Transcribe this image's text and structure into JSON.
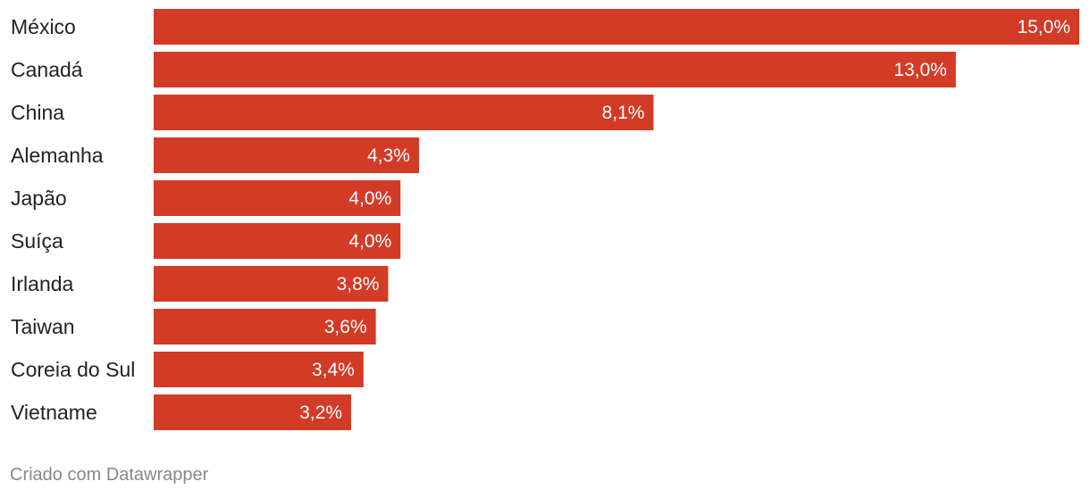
{
  "chart_data": {
    "type": "bar",
    "orientation": "horizontal",
    "categories": [
      "México",
      "Canadá",
      "China",
      "Alemanha",
      "Japão",
      "Suíça",
      "Irlanda",
      "Taiwan",
      "Coreia do Sul",
      "Vietname"
    ],
    "values": [
      15.0,
      13.0,
      8.1,
      4.3,
      4.0,
      4.0,
      3.8,
      3.6,
      3.4,
      3.2
    ],
    "value_labels": [
      "15,0%",
      "13,0%",
      "8,1%",
      "4,3%",
      "4,0%",
      "4,0%",
      "3,8%",
      "3,6%",
      "3,4%",
      "3,2%"
    ],
    "xlim": [
      0,
      15
    ],
    "grid": false,
    "bar_color": "#d23b26"
  },
  "footer": {
    "credit": "Criado com Datawrapper"
  }
}
